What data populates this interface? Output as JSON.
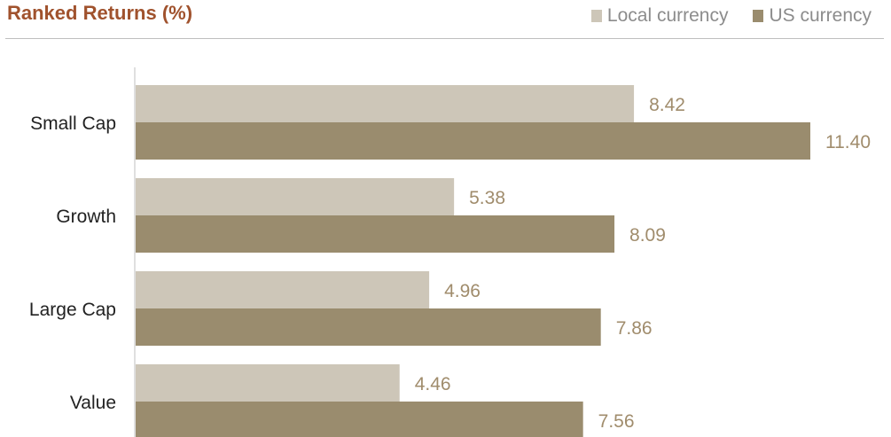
{
  "chart_data": {
    "type": "bar",
    "orientation": "horizontal",
    "title": "Ranked Returns (%)",
    "categories": [
      "Small Cap",
      "Growth",
      "Large Cap",
      "Value"
    ],
    "series": [
      {
        "name": "Local currency",
        "values": [
          8.42,
          5.38,
          4.96,
          4.46
        ],
        "color": "#cdc6b8"
      },
      {
        "name": "US currency",
        "values": [
          11.4,
          8.09,
          7.86,
          7.56
        ],
        "color": "#9a8c6e"
      }
    ],
    "xlim": [
      0,
      13
    ],
    "legend": "top-right",
    "grid": false,
    "label_color": "#a08c6c"
  }
}
